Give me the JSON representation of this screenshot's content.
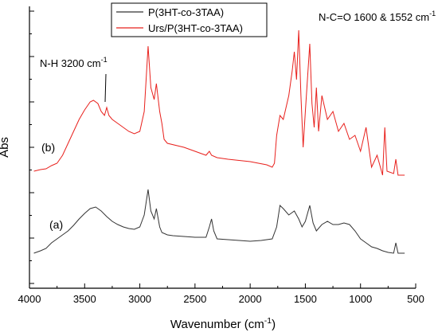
{
  "chart_data": {
    "type": "line",
    "xlabel": {
      "text": "Wavenumber (cm",
      "sup": "-1",
      "tail": ")"
    },
    "ylabel": "Abs",
    "xlim": [
      4000,
      500
    ],
    "xticks": [
      4000,
      3500,
      3000,
      2500,
      2000,
      1500,
      1000,
      500
    ],
    "ylim": [
      0,
      354
    ],
    "annotations": [
      {
        "text": "N-H 3200 cm",
        "sup": "-1"
      },
      {
        "text": "N-C=O 1600 & 1552 cm",
        "sup": "-1"
      },
      {
        "text": "(b)"
      },
      {
        "text": "(a)"
      }
    ],
    "series": [
      {
        "name": "P(3HT-co-3TAA)",
        "color": "#333333",
        "x": [
          3960,
          3900,
          3850,
          3800,
          3750,
          3700,
          3650,
          3600,
          3550,
          3500,
          3450,
          3400,
          3350,
          3300,
          3250,
          3200,
          3150,
          3100,
          3050,
          3000,
          2960,
          2925,
          2900,
          2870,
          2850,
          2820,
          2800,
          2750,
          2700,
          2600,
          2500,
          2400,
          2370,
          2350,
          2330,
          2300,
          2200,
          2100,
          2000,
          1900,
          1800,
          1760,
          1730,
          1700,
          1650,
          1600,
          1560,
          1530,
          1500,
          1460,
          1430,
          1400,
          1350,
          1300,
          1250,
          1200,
          1150,
          1100,
          1050,
          1000,
          950,
          900,
          850,
          800,
          750,
          700,
          680,
          660,
          600
        ],
        "values": [
          44,
          47,
          50,
          57,
          62,
          67,
          72,
          79,
          87,
          94,
          100,
          102,
          97,
          90,
          84,
          80,
          77,
          75,
          74,
          77,
          92,
          124,
          97,
          87,
          100,
          77,
          70,
          67,
          66,
          65,
          64,
          64,
          77,
          87,
          72,
          62,
          61,
          60,
          59,
          60,
          62,
          77,
          104,
          100,
          92,
          97,
          87,
          77,
          84,
          104,
          82,
          72,
          80,
          84,
          80,
          80,
          82,
          80,
          72,
          62,
          57,
          52,
          50,
          47,
          45,
          44,
          57,
          44,
          44
        ]
      },
      {
        "name": "Urs/P(3HT-co-3TAA)",
        "color": "#e8201c",
        "x": [
          3960,
          3900,
          3850,
          3800,
          3750,
          3700,
          3650,
          3600,
          3550,
          3500,
          3450,
          3420,
          3380,
          3350,
          3320,
          3300,
          3280,
          3250,
          3200,
          3100,
          3050,
          3000,
          2960,
          2925,
          2900,
          2870,
          2850,
          2820,
          2800,
          2780,
          2750,
          2600,
          2500,
          2400,
          2370,
          2350,
          2300,
          2200,
          2000,
          1850,
          1800,
          1780,
          1760,
          1730,
          1700,
          1650,
          1620,
          1600,
          1580,
          1560,
          1540,
          1520,
          1500,
          1460,
          1440,
          1420,
          1400,
          1380,
          1350,
          1300,
          1250,
          1200,
          1150,
          1100,
          1050,
          1000,
          950,
          900,
          850,
          800,
          780,
          760,
          700,
          680,
          660,
          600
        ],
        "values": [
          147,
          149,
          150,
          154,
          157,
          167,
          182,
          197,
          212,
          224,
          234,
          236,
          232,
          222,
          217,
          227,
          217,
          212,
          207,
          197,
          194,
          197,
          222,
          304,
          252,
          237,
          257,
          222,
          207,
          187,
          182,
          177,
          172,
          167,
          172,
          167,
          164,
          162,
          159,
          155,
          152,
          157,
          192,
          217,
          212,
          242,
          272,
          297,
          262,
          324,
          242,
          177,
          222,
          307,
          232,
          202,
          252,
          197,
          242,
          212,
          222,
          197,
          207,
          187,
          192,
          172,
          202,
          152,
          167,
          142,
          202,
          147,
          144,
          162,
          142,
          142
        ]
      }
    ]
  }
}
